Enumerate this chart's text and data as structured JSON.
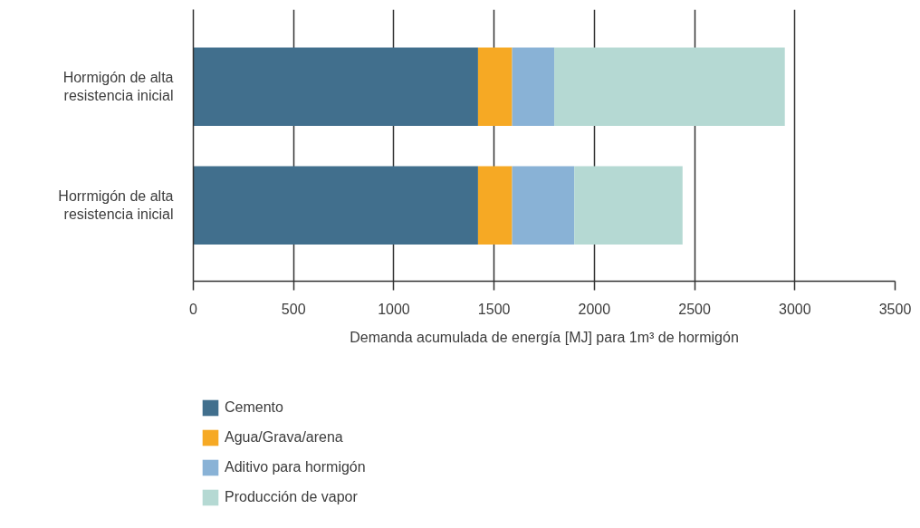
{
  "chart_data": {
    "type": "bar",
    "orientation": "horizontal",
    "stacked": true,
    "categories": [
      "Hormigón de alta resistencia inicial",
      "Horrmigón de alta resistencia inicial"
    ],
    "series": [
      {
        "name": "Cemento",
        "color": "#416f8d",
        "values": [
          1420,
          1420
        ]
      },
      {
        "name": "Agua/Grava/arena",
        "color": "#f6a924",
        "values": [
          170,
          170
        ]
      },
      {
        "name": "Aditivo para hormigón",
        "color": "#89b2d6",
        "values": [
          210,
          310
        ]
      },
      {
        "name": "Producción de vapor",
        "color": "#b5d9d3",
        "values": [
          1150,
          540
        ]
      }
    ],
    "xlabel": "Demanda acumulada de energía [MJ] para 1m³ de hormigón",
    "xlim": [
      0,
      3500
    ],
    "xticks": [
      0,
      500,
      1000,
      1500,
      2000,
      2500,
      3000,
      3500
    ],
    "grid": "x",
    "legend": "bottom left"
  }
}
